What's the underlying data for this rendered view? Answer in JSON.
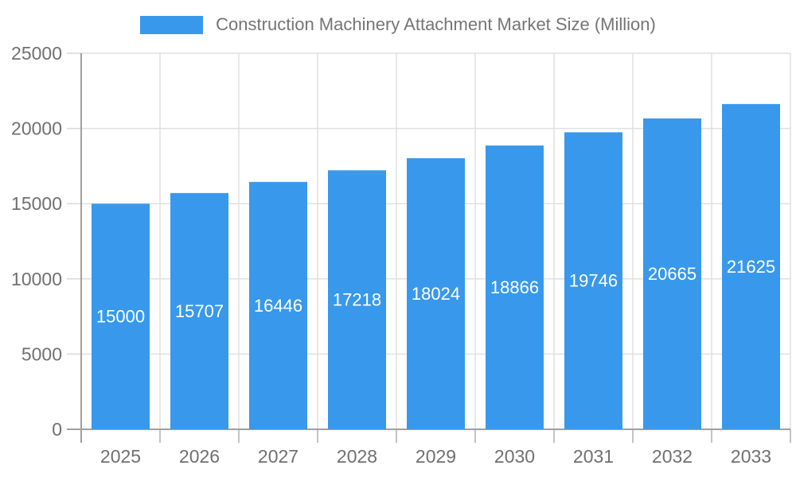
{
  "legend": {
    "label": "Construction Machinery Attachment Market Size (Million)",
    "swatch_color": "#3899EC"
  },
  "colors": {
    "bar": "#3899EC",
    "value_label": "#FFFFFF",
    "axis_text": "#707070",
    "legend_text": "#757575",
    "grid_line": "#E0E0E0",
    "y_tick": "#D9D9D9",
    "x_tick": "#B0B0B0",
    "axis_line": "#A0A0A0",
    "background": "#FFFFFF"
  },
  "chart_data": {
    "type": "bar",
    "title": "Construction Machinery Attachment Market Size (Million)",
    "categories": [
      "2025",
      "2026",
      "2027",
      "2028",
      "2029",
      "2030",
      "2031",
      "2032",
      "2033"
    ],
    "values": [
      15000,
      15707,
      16446,
      17218,
      18024,
      18866,
      19746,
      20665,
      21625
    ],
    "series_name": "Construction Machinery Attachment Market Size (Million)",
    "xlabel": "",
    "ylabel": "",
    "ylim": [
      0,
      25000
    ],
    "ytick_step": 5000,
    "ytick_labels": [
      "0",
      "5000",
      "10000",
      "15000",
      "20000",
      "25000"
    ],
    "grid": true,
    "legend_position": "top-center",
    "value_labels": "white, centered inside bars"
  }
}
